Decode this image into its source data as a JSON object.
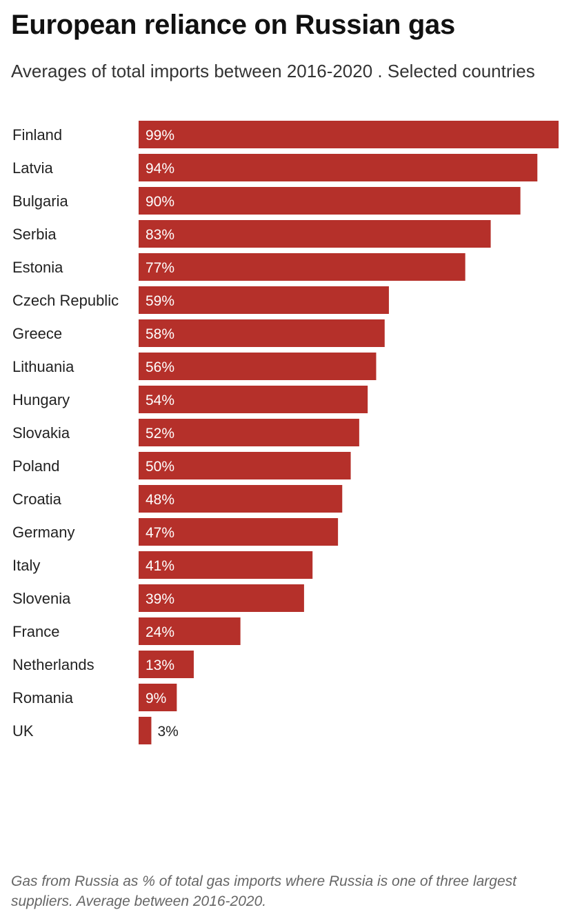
{
  "header": {
    "title": "European reliance on Russian gas",
    "subtitle": "Averages of total imports between 2016-2020 . Selected countries"
  },
  "chart_data": {
    "type": "bar",
    "orientation": "horizontal",
    "categories": [
      "Finland",
      "Latvia",
      "Bulgaria",
      "Serbia",
      "Estonia",
      "Czech Republic",
      "Greece",
      "Lithuania",
      "Hungary",
      "Slovakia",
      "Poland",
      "Croatia",
      "Germany",
      "Italy",
      "Slovenia",
      "France",
      "Netherlands",
      "Romania",
      "UK"
    ],
    "values": [
      99,
      94,
      90,
      83,
      77,
      59,
      58,
      56,
      54,
      52,
      50,
      48,
      47,
      41,
      39,
      24,
      13,
      9,
      3
    ],
    "data_labels": [
      "99%",
      "94%",
      "90%",
      "83%",
      "77%",
      "59%",
      "58%",
      "56%",
      "54%",
      "52%",
      "50%",
      "48%",
      "47%",
      "41%",
      "39%",
      "24%",
      "13%",
      "9%",
      "3%"
    ],
    "xlim": [
      0,
      99
    ],
    "grid": false,
    "bar_color": "#b5302a",
    "label_inside_color": "#ffffff",
    "label_outside_color": "#222222"
  },
  "footnote": "Gas from Russia as % of total gas imports where Russia is one of three largest suppliers. Average between 2016-2020."
}
